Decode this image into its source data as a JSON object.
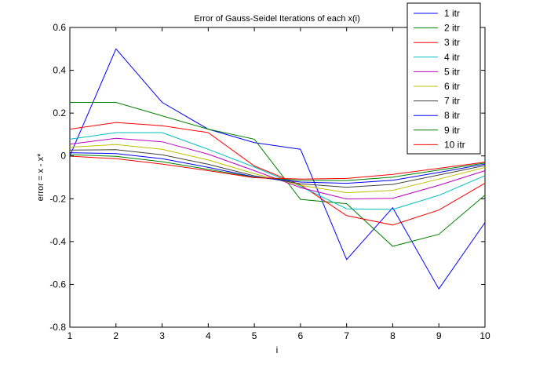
{
  "chart_data": {
    "type": "line",
    "title": "Error of Gauss-Seidel Iterations of each x(i)",
    "xlabel": "i",
    "ylabel": "error = x - x*",
    "xlim": [
      1,
      10
    ],
    "ylim": [
      -0.8,
      0.6
    ],
    "xticks": [
      1,
      2,
      3,
      4,
      5,
      6,
      7,
      8,
      9,
      10
    ],
    "yticks": [
      -0.8,
      -0.6,
      -0.4,
      -0.2,
      0,
      0.2,
      0.4,
      0.6
    ],
    "grid": false,
    "legend_position": "top-right",
    "x": [
      1,
      2,
      3,
      4,
      5,
      6,
      7,
      8,
      9,
      10
    ],
    "series": [
      {
        "name": "1 itr",
        "color": "#0000ff",
        "values": [
          0.0,
          0.5,
          0.25,
          0.125,
          0.0625,
          0.03125,
          -0.484,
          -0.242,
          -0.621,
          -0.311
        ]
      },
      {
        "name": "2 itr",
        "color": "#008000",
        "values": [
          0.25,
          0.25,
          0.1875,
          0.125,
          0.078,
          -0.203,
          -0.223,
          -0.422,
          -0.366,
          -0.183
        ]
      },
      {
        "name": "3 itr",
        "color": "#ff0000",
        "values": [
          0.125,
          0.156,
          0.141,
          0.109,
          -0.047,
          -0.135,
          -0.279,
          -0.323,
          -0.253,
          -0.127
        ]
      },
      {
        "name": "4 itr",
        "color": "#00bfbf",
        "values": [
          0.078,
          0.109,
          0.109,
          0.031,
          -0.052,
          -0.142,
          -0.247,
          -0.25,
          -0.184,
          -0.092
        ]
      },
      {
        "name": "5 itr",
        "color": "#bf00bf",
        "values": [
          0.055,
          0.082,
          0.066,
          0.008,
          -0.069,
          -0.148,
          -0.201,
          -0.198,
          -0.137,
          -0.069
        ]
      },
      {
        "name": "6 itr",
        "color": "#bfbf00",
        "values": [
          0.041,
          0.053,
          0.031,
          -0.019,
          -0.083,
          -0.137,
          -0.172,
          -0.161,
          -0.108,
          -0.054
        ]
      },
      {
        "name": "7 itr",
        "color": "#404040",
        "values": [
          0.027,
          0.029,
          0.005,
          -0.039,
          -0.093,
          -0.13,
          -0.146,
          -0.133,
          -0.089,
          -0.045
        ]
      },
      {
        "name": "8 itr",
        "color": "#0000ff",
        "values": [
          0.015,
          0.011,
          -0.013,
          -0.053,
          -0.098,
          -0.122,
          -0.128,
          -0.114,
          -0.077,
          -0.038
        ]
      },
      {
        "name": "9 itr",
        "color": "#008000",
        "values": [
          0.006,
          -0.002,
          -0.027,
          -0.063,
          -0.1,
          -0.114,
          -0.115,
          -0.099,
          -0.066,
          -0.033
        ]
      },
      {
        "name": "10 itr",
        "color": "#ff0000",
        "values": [
          -0.001,
          -0.013,
          -0.038,
          -0.069,
          -0.102,
          -0.108,
          -0.105,
          -0.086,
          -0.058,
          -0.029
        ]
      }
    ]
  }
}
